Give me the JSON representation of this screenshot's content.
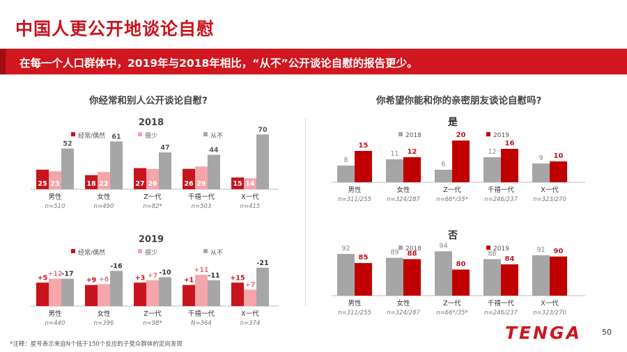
{
  "title": "中国人更公开地谈论自慰",
  "banner": "在每一个人口群体中，2019年与2018年相比，“从不”公开谈论自慰的报告更少。",
  "colors": {
    "red": "#c8141e",
    "pink": "#f4a6aa",
    "gray": "#a6a6a6",
    "dark_red": "#c00000"
  },
  "left_question": "你经常和别人公开谈论自慰?",
  "right_question": "你希望你能和你的亲密朋友谈论自慰吗?",
  "footnote": "*注释：星号表示来自N个低于150个反应的子受众群体的定向发现",
  "page_number": "50",
  "logo": "TENGA",
  "chart_data": [
    {
      "type": "bar",
      "title": "2018",
      "legend": [
        "经常/偶然",
        "很少",
        "从不"
      ],
      "categories": [
        "男性",
        "女性",
        "Z一代",
        "千禧一代",
        "X一代"
      ],
      "sample_sizes": [
        "n=510",
        "n=490",
        "n=82*",
        "n=503",
        "n=415"
      ],
      "series": [
        {
          "name": "经常/偶然",
          "values": [
            25,
            18,
            27,
            26,
            15
          ]
        },
        {
          "name": "很少",
          "values": [
            23,
            22,
            26,
            29,
            14
          ]
        },
        {
          "name": "从不",
          "values": [
            52,
            61,
            47,
            44,
            70
          ]
        }
      ],
      "ylim": [
        0,
        80
      ]
    },
    {
      "type": "bar",
      "title": "2019",
      "legend": [
        "经常/偶然",
        "很少",
        "从不"
      ],
      "categories": [
        "男性",
        "女性",
        "Z一代",
        "千禧一代",
        "X一代"
      ],
      "sample_sizes": [
        "n=440",
        "n=396",
        "n=98*",
        "N=364",
        "n=374"
      ],
      "series": [
        {
          "name": "经常/偶然",
          "values": [
            30,
            27,
            30,
            27,
            30
          ],
          "labels": [
            "+5",
            "+9",
            "+3",
            "+1",
            "+15"
          ]
        },
        {
          "name": "很少",
          "values": [
            35,
            28,
            33,
            40,
            21
          ],
          "labels": [
            "+12",
            "+6",
            "+7",
            "+11",
            "+7"
          ]
        },
        {
          "name": "从不",
          "values": [
            35,
            45,
            37,
            33,
            49
          ],
          "labels": [
            "-17",
            "-16",
            "-10",
            "-11",
            "-21"
          ]
        }
      ],
      "ylim": [
        0,
        80
      ]
    },
    {
      "type": "bar",
      "title": "是",
      "legend": [
        "2018",
        "2019"
      ],
      "categories": [
        "男性",
        "女性",
        "Z一代",
        "千禧一代",
        "X一代"
      ],
      "sample_sizes": [
        "n=311/255",
        "n=324/287",
        "n=66*/35*",
        "n=246/237",
        "n=323/270"
      ],
      "series": [
        {
          "name": "2018",
          "values": [
            8,
            11,
            6,
            12,
            9
          ]
        },
        {
          "name": "2019",
          "values": [
            15,
            12,
            20,
            16,
            10
          ]
        }
      ],
      "ylim": [
        0,
        25
      ]
    },
    {
      "type": "bar",
      "title": "否",
      "legend": [
        "2018",
        "2019"
      ],
      "categories": [
        "男性",
        "女性",
        "Z一代",
        "千禧一代",
        "X一代"
      ],
      "sample_sizes": [
        "n=311/255",
        "n=324/287",
        "n=66*/35*",
        "n=246/237",
        "n=323/270"
      ],
      "series": [
        {
          "name": "2018",
          "values": [
            92,
            89,
            94,
            88,
            91
          ]
        },
        {
          "name": "2019",
          "values": [
            85,
            88,
            80,
            84,
            90
          ]
        }
      ],
      "ylim": [
        60,
        100
      ]
    }
  ]
}
